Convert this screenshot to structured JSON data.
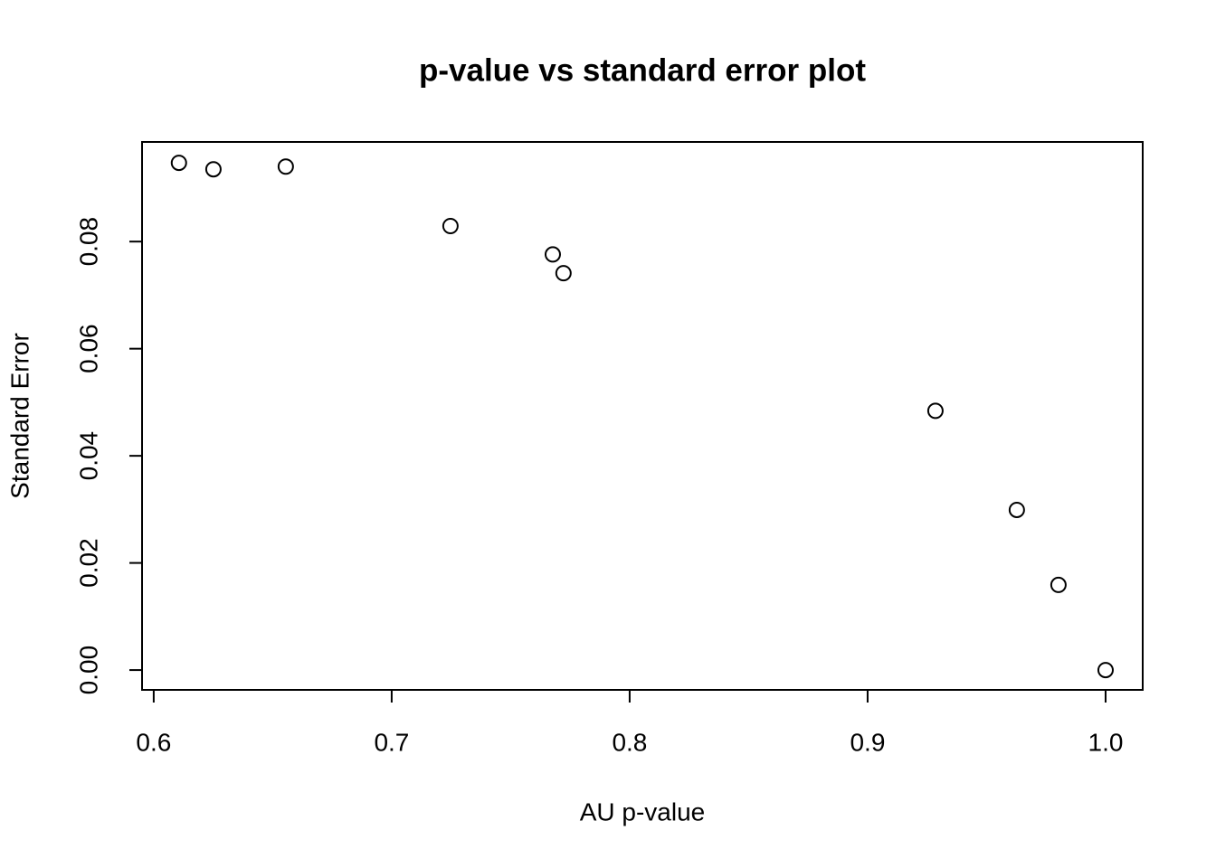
{
  "chart_data": {
    "type": "scatter",
    "title": "p-value vs standard error plot",
    "x_label": "AU p-value",
    "y_label": "Standard Error",
    "x": [
      0.6106,
      0.6251,
      0.6555,
      0.7247,
      0.7677,
      0.7722,
      0.9285,
      0.9627,
      0.9802,
      1.0
    ],
    "values": [
      0.0947,
      0.0935,
      0.094,
      0.0829,
      0.0776,
      0.0741,
      0.0484,
      0.0299,
      0.0159,
      0.0
    ],
    "color": "#000000",
    "xlim": [
      0.5951,
      1.0156
    ],
    "ylim": [
      -0.0037,
      0.0986
    ],
    "xticks": [
      0.6,
      0.7,
      0.8,
      0.9,
      {
        "value": 1.0,
        "label": "1.0"
      }
    ],
    "yticks": [
      {
        "value": 0,
        "label": "0.00"
      },
      {
        "value": 0.02,
        "label": "0.02"
      },
      {
        "value": 0.04,
        "label": "0.04"
      },
      {
        "value": 0.06,
        "label": "0.06"
      },
      {
        "value": 0.08,
        "label": "0.08"
      }
    ]
  }
}
